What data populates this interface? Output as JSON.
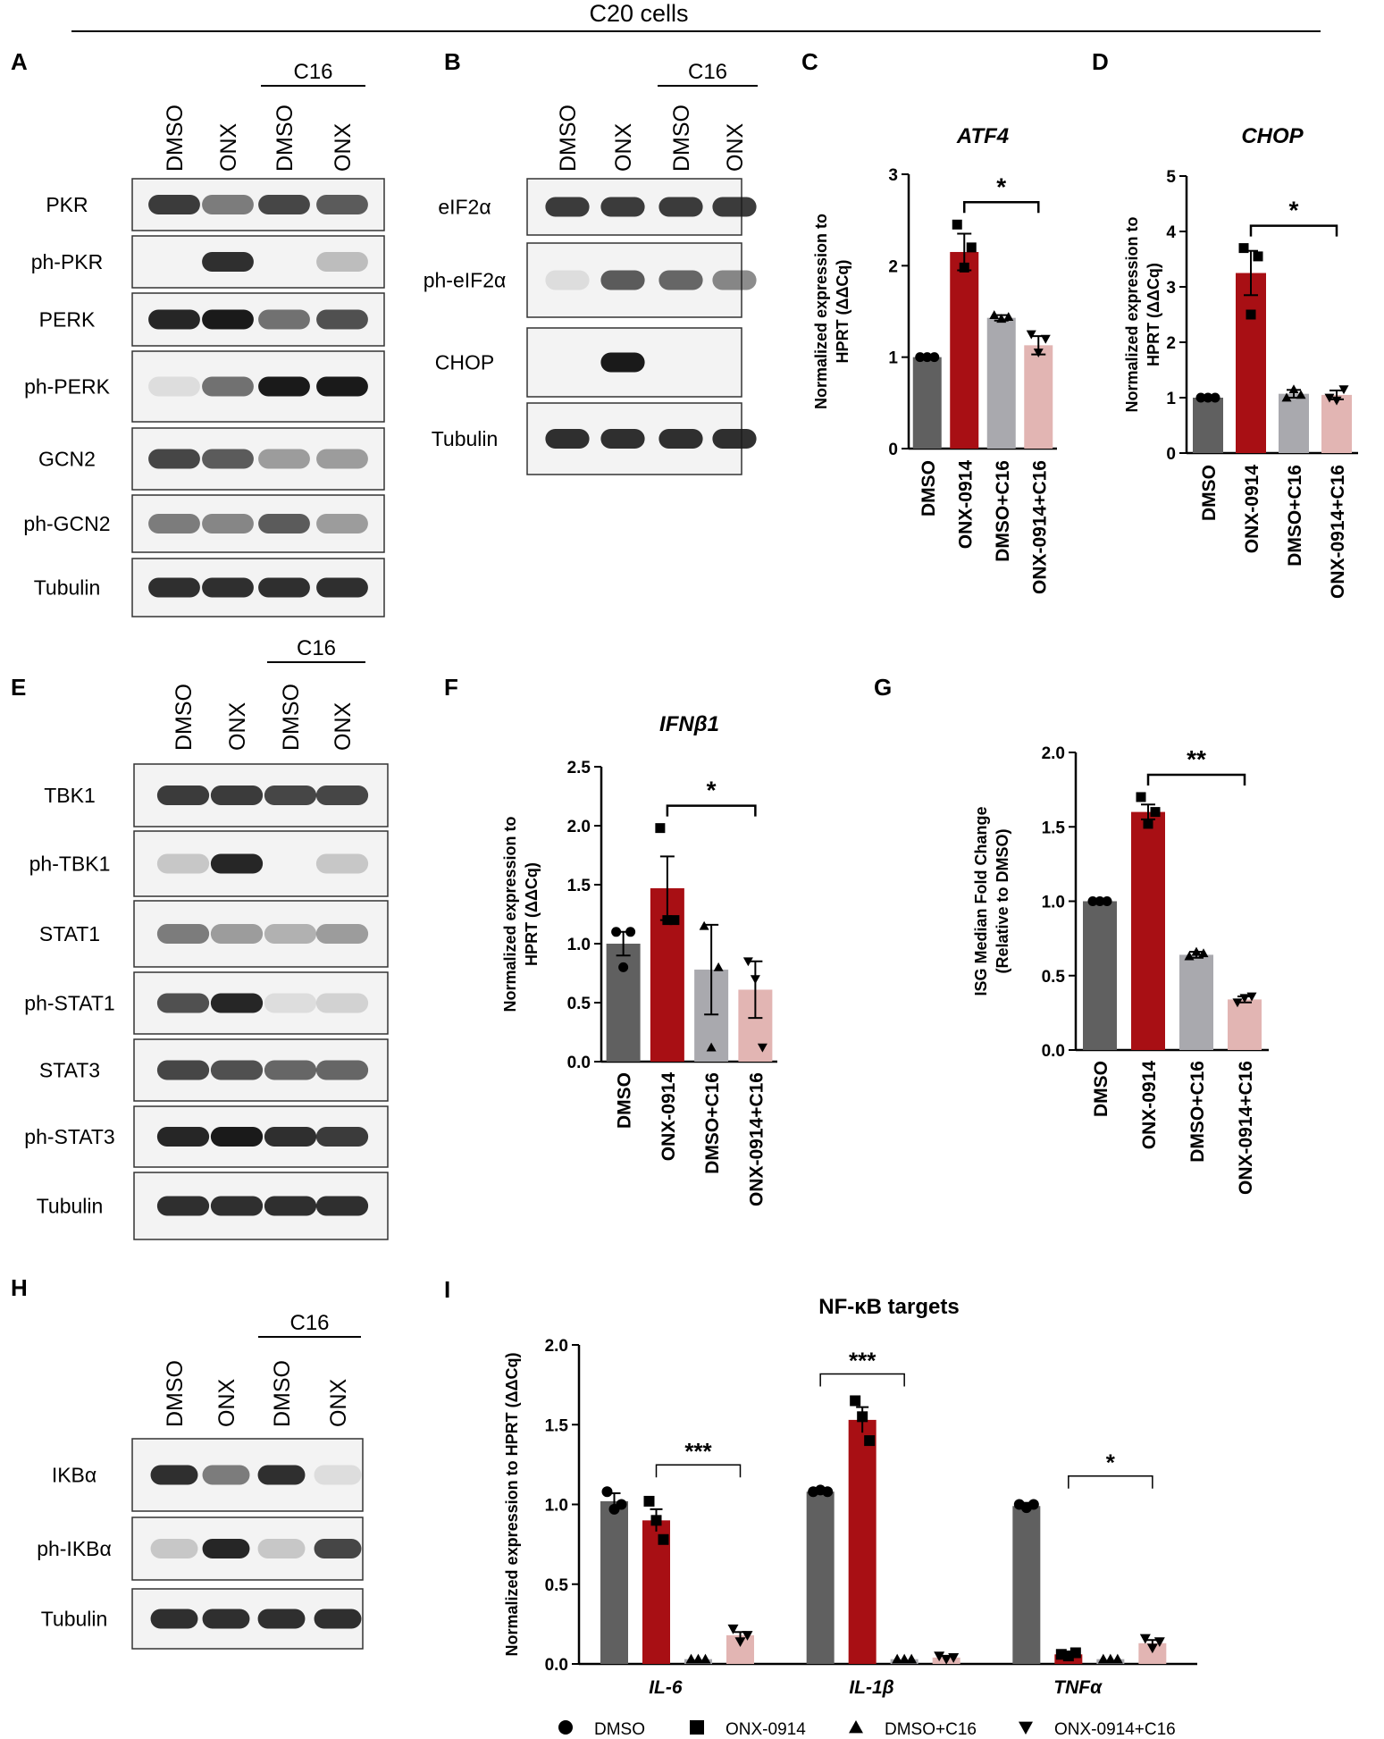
{
  "figure_title": "C20 cells",
  "colors": {
    "dmso": "#606060",
    "onx": "#a80f14",
    "dmso_c16": "#a9a9ae",
    "onx_c16": "#e2b5b3",
    "band": "#1a1a1a",
    "blot_bg": "#f3f3f3"
  },
  "panels": {
    "A": {
      "letter": "A",
      "group_label": "C16",
      "lanes": [
        "DMSO",
        "ONX",
        "DMSO",
        "ONX"
      ],
      "blots": [
        {
          "label": "PKR",
          "intensity": [
            0.85,
            0.55,
            0.8,
            0.7
          ]
        },
        {
          "label": "ph-PKR",
          "intensity": [
            0.0,
            0.9,
            0.0,
            0.25
          ]
        },
        {
          "label": "PERK",
          "intensity": [
            0.95,
            1.0,
            0.6,
            0.75
          ]
        },
        {
          "label": "ph-PERK",
          "intensity": [
            0.1,
            0.6,
            1.0,
            1.0
          ]
        },
        {
          "label": "GCN2",
          "intensity": [
            0.8,
            0.7,
            0.4,
            0.4
          ]
        },
        {
          "label": "ph-GCN2",
          "intensity": [
            0.55,
            0.5,
            0.7,
            0.4
          ]
        },
        {
          "label": "Tubulin",
          "intensity": [
            0.9,
            0.9,
            0.9,
            0.9
          ]
        }
      ]
    },
    "B": {
      "letter": "B",
      "group_label": "C16",
      "lanes": [
        "DMSO",
        "ONX",
        "DMSO",
        "ONX"
      ],
      "blots": [
        {
          "label": "eIF2α",
          "intensity": [
            0.85,
            0.85,
            0.85,
            0.85
          ]
        },
        {
          "label": "ph-eIF2α",
          "intensity": [
            0.1,
            0.7,
            0.65,
            0.5
          ]
        },
        {
          "label": "CHOP",
          "intensity": [
            0.0,
            1.0,
            0.0,
            0.0
          ]
        },
        {
          "label": "Tubulin",
          "intensity": [
            0.9,
            0.9,
            0.9,
            0.9
          ]
        }
      ]
    },
    "E": {
      "letter": "E",
      "group_label": "C16",
      "lanes": [
        "DMSO",
        "ONX",
        "DMSO",
        "ONX"
      ],
      "blots": [
        {
          "label": "TBK1",
          "intensity": [
            0.85,
            0.85,
            0.8,
            0.8
          ]
        },
        {
          "label": "ph-TBK1",
          "intensity": [
            0.2,
            0.95,
            0.0,
            0.2
          ]
        },
        {
          "label": "STAT1",
          "intensity": [
            0.55,
            0.4,
            0.3,
            0.4
          ]
        },
        {
          "label": "ph-STAT1",
          "intensity": [
            0.75,
            0.95,
            0.1,
            0.15
          ]
        },
        {
          "label": "STAT3",
          "intensity": [
            0.8,
            0.75,
            0.65,
            0.65
          ]
        },
        {
          "label": "ph-STAT3",
          "intensity": [
            0.95,
            1.0,
            0.9,
            0.85
          ]
        },
        {
          "label": "Tubulin",
          "intensity": [
            0.9,
            0.9,
            0.9,
            0.9
          ]
        }
      ]
    },
    "H": {
      "letter": "H",
      "group_label": "C16",
      "lanes": [
        "DMSO",
        "ONX",
        "DMSO",
        "ONX"
      ],
      "blots": [
        {
          "label": "IKBα",
          "intensity": [
            0.9,
            0.55,
            0.9,
            0.1
          ]
        },
        {
          "label": "ph-IKBα",
          "intensity": [
            0.2,
            0.95,
            0.2,
            0.8
          ]
        },
        {
          "label": "Tubulin",
          "intensity": [
            0.9,
            0.9,
            0.9,
            0.9
          ]
        }
      ]
    }
  },
  "chart_data": [
    {
      "panel": "C",
      "type": "bar",
      "title": "ATF4",
      "ylabel": "Normalized expression to HPRT (ΔΔCq)",
      "categories": [
        "DMSO",
        "ONX-0914",
        "DMSO+C16",
        "ONX-0914+C16"
      ],
      "values": [
        1.0,
        2.15,
        1.43,
        1.13
      ],
      "errors": [
        0.01,
        0.2,
        0.03,
        0.1
      ],
      "points": [
        [
          1.0,
          1.0,
          1.0
        ],
        [
          2.45,
          1.98,
          2.2
        ],
        [
          1.46,
          1.42,
          1.44
        ],
        [
          1.25,
          1.05,
          1.2
        ]
      ],
      "ylim": [
        0,
        3
      ],
      "yticks": [
        0,
        1,
        2,
        3
      ],
      "significance": [
        {
          "from": 1,
          "to": 3,
          "label": "*"
        }
      ]
    },
    {
      "panel": "D",
      "type": "bar",
      "title": "CHOP",
      "ylabel": "Normalized expression to HPRT (ΔΔCq)",
      "categories": [
        "DMSO",
        "ONX-0914",
        "DMSO+C16",
        "ONX-0914+C16"
      ],
      "values": [
        1.0,
        3.25,
        1.07,
        1.05
      ],
      "errors": [
        0.01,
        0.4,
        0.07,
        0.08
      ],
      "points": [
        [
          1.0,
          1.0,
          1.0
        ],
        [
          3.7,
          2.5,
          3.55
        ],
        [
          1.0,
          1.15,
          1.05
        ],
        [
          1.0,
          0.95,
          1.15
        ]
      ],
      "ylim": [
        0,
        5
      ],
      "yticks": [
        0,
        1,
        2,
        3,
        4,
        5
      ],
      "significance": [
        {
          "from": 1,
          "to": 3,
          "label": "*"
        }
      ]
    },
    {
      "panel": "F",
      "type": "bar",
      "title": "IFNβ1",
      "ylabel": "Normalized expression to HPRT (ΔΔCq)",
      "categories": [
        "DMSO",
        "ONX-0914",
        "DMSO+C16",
        "ONX-0914+C16"
      ],
      "values": [
        1.0,
        1.47,
        0.78,
        0.61
      ],
      "errors": [
        0.1,
        0.27,
        0.38,
        0.24
      ],
      "points": [
        [
          1.1,
          0.8,
          1.1
        ],
        [
          1.98,
          1.2,
          1.2
        ],
        [
          1.15,
          0.12,
          0.8
        ],
        [
          0.85,
          0.7,
          0.12
        ]
      ],
      "ylim": [
        0,
        2.5
      ],
      "yticks": [
        0.0,
        0.5,
        1.0,
        1.5,
        2.0,
        2.5
      ],
      "significance": [
        {
          "from": 1,
          "to": 3,
          "label": "*"
        }
      ]
    },
    {
      "panel": "G",
      "type": "bar",
      "title": "",
      "ylabel": "ISG Median Fold Change (Relative to DMSO)",
      "categories": [
        "DMSO",
        "ONX-0914",
        "DMSO+C16",
        "ONX-0914+C16"
      ],
      "values": [
        1.0,
        1.6,
        0.64,
        0.34
      ],
      "errors": [
        0.0,
        0.05,
        0.02,
        0.02
      ],
      "points": [
        [
          1.0,
          1.0,
          1.0
        ],
        [
          1.7,
          1.52,
          1.6
        ],
        [
          0.63,
          0.66,
          0.65
        ],
        [
          0.32,
          0.35,
          0.36
        ]
      ],
      "ylim": [
        0,
        2.0
      ],
      "yticks": [
        0.0,
        0.5,
        1.0,
        1.5,
        2.0
      ],
      "significance": [
        {
          "from": 1,
          "to": 3,
          "label": "**"
        }
      ]
    },
    {
      "panel": "I",
      "type": "bar",
      "title": "NF-κB targets",
      "ylabel": "Normalized expression to HPRT (ΔΔCq)",
      "categories": [
        "IL-6",
        "IL-1β",
        "TNFα"
      ],
      "ylim": [
        0,
        2.0
      ],
      "yticks": [
        0.0,
        0.5,
        1.0,
        1.5,
        2.0
      ],
      "series": [
        {
          "name": "DMSO",
          "values": [
            1.02,
            1.08,
            0.99
          ],
          "errors": [
            0.05,
            0.01,
            0.02
          ],
          "points": [
            [
              1.08,
              0.97,
              1.0
            ],
            [
              1.08,
              1.09,
              1.08
            ],
            [
              1.0,
              0.98,
              1.0
            ]
          ]
        },
        {
          "name": "ONX-0914",
          "values": [
            0.9,
            1.53,
            0.06
          ],
          "errors": [
            0.07,
            0.08,
            0.01
          ],
          "points": [
            [
              1.02,
              0.9,
              0.78
            ],
            [
              1.65,
              1.55,
              1.4
            ],
            [
              0.06,
              0.05,
              0.07
            ]
          ]
        },
        {
          "name": "DMSO+C16",
          "values": [
            0.03,
            0.03,
            0.03
          ],
          "errors": [
            0.0,
            0.0,
            0.0
          ],
          "points": [
            [
              0.03,
              0.03,
              0.03
            ],
            [
              0.03,
              0.03,
              0.03
            ],
            [
              0.03,
              0.03,
              0.03
            ]
          ]
        },
        {
          "name": "ONX-0914+C16",
          "values": [
            0.18,
            0.04,
            0.13
          ],
          "errors": [
            0.02,
            0.01,
            0.02
          ],
          "points": [
            [
              0.22,
              0.14,
              0.18
            ],
            [
              0.05,
              0.03,
              0.04
            ],
            [
              0.16,
              0.1,
              0.14
            ]
          ]
        }
      ],
      "significance": [
        {
          "group": 0,
          "from": 1,
          "to": 3,
          "label": "***"
        },
        {
          "group": 1,
          "from": 0,
          "to": 2,
          "label": "***"
        },
        {
          "group": 2,
          "from": 1,
          "to": 3,
          "label": "*"
        }
      ]
    }
  ]
}
